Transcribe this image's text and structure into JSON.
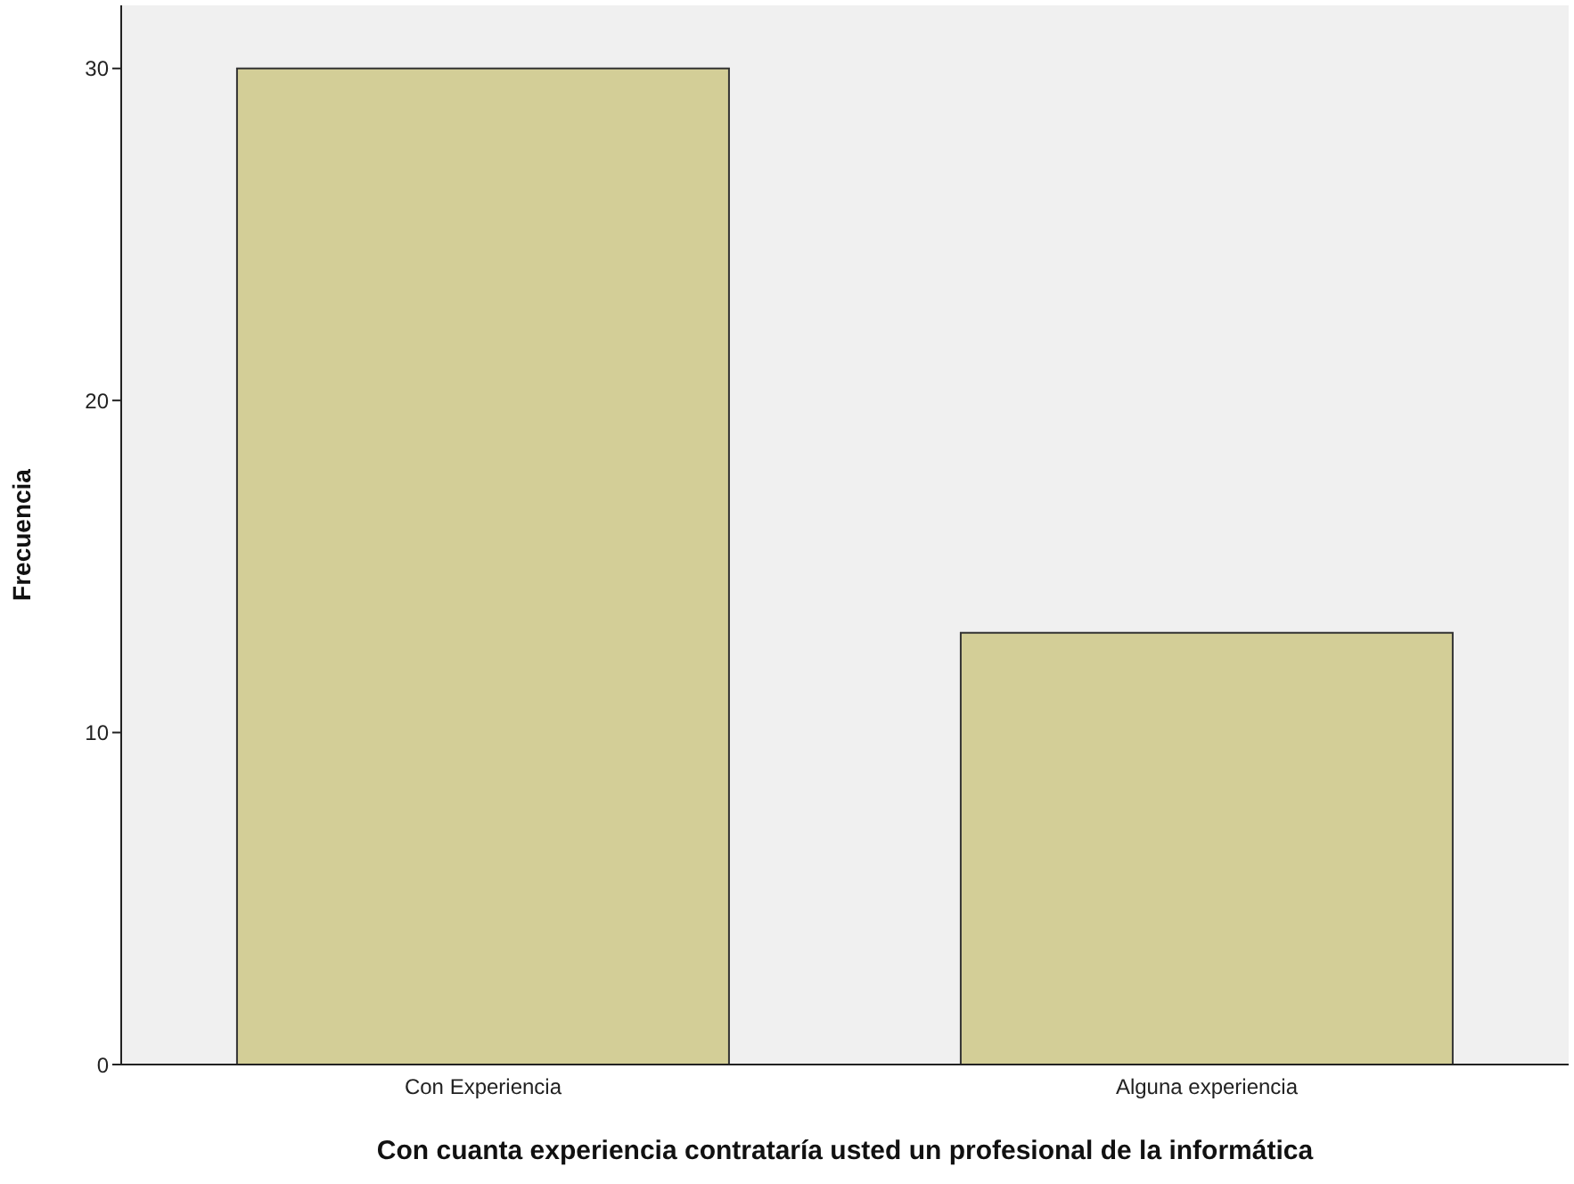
{
  "chart_data": {
    "type": "bar",
    "xlabel": "Con cuanta experiencia contrataría usted un profesional de la informática",
    "ylabel": "Frecuencia",
    "categories": [
      "Con Experiencia",
      "Alguna experiencia"
    ],
    "values": [
      30,
      13
    ],
    "color": "#d3ce97",
    "ylim": [
      0,
      31.9
    ],
    "yticks": [
      0,
      10,
      20,
      30
    ]
  }
}
